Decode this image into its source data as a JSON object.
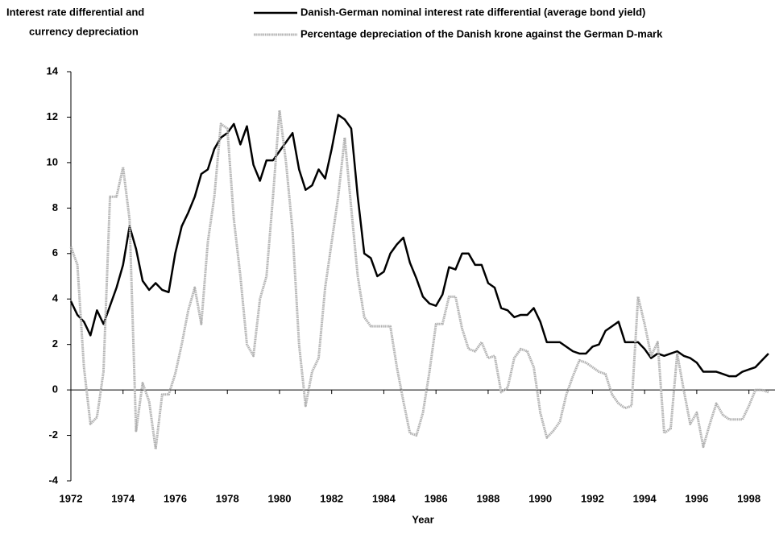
{
  "chart_data": {
    "type": "line",
    "ylabel_lines": [
      "Interest rate differential and",
      "currency depreciation"
    ],
    "xlabel": "Year",
    "x": [
      1972,
      1972.25,
      1972.5,
      1972.75,
      1973,
      1973.25,
      1973.5,
      1973.75,
      1974,
      1974.25,
      1974.5,
      1974.75,
      1975,
      1975.25,
      1975.5,
      1975.75,
      1976,
      1976.25,
      1976.5,
      1976.75,
      1977,
      1977.25,
      1977.5,
      1977.75,
      1978,
      1978.25,
      1978.5,
      1978.75,
      1979,
      1979.25,
      1979.5,
      1979.75,
      1980,
      1980.25,
      1980.5,
      1980.75,
      1981,
      1981.25,
      1981.5,
      1981.75,
      1982,
      1982.25,
      1982.5,
      1982.75,
      1983,
      1983.25,
      1983.5,
      1983.75,
      1984,
      1984.25,
      1984.5,
      1984.75,
      1985,
      1985.25,
      1985.5,
      1985.75,
      1986,
      1986.25,
      1986.5,
      1986.75,
      1987,
      1987.25,
      1987.5,
      1987.75,
      1988,
      1988.25,
      1988.5,
      1988.75,
      1989,
      1989.25,
      1989.5,
      1989.75,
      1990,
      1990.25,
      1990.5,
      1990.75,
      1991,
      1991.25,
      1991.5,
      1991.75,
      1992,
      1992.25,
      1992.5,
      1992.75,
      1993,
      1993.25,
      1993.5,
      1993.75,
      1994,
      1994.25,
      1994.5,
      1994.75,
      1995,
      1995.25,
      1995.5,
      1995.75,
      1996,
      1996.25,
      1996.5,
      1996.75,
      1997,
      1997.25,
      1997.5,
      1997.75,
      1998,
      1998.25,
      1998.5,
      1998.75
    ],
    "series": [
      {
        "name": "Danish-German nominal interest rate differential (average bond yield)",
        "color": "#000000",
        "values": [
          3.9,
          3.3,
          3.0,
          2.4,
          3.5,
          2.9,
          3.7,
          4.5,
          5.5,
          7.2,
          6.2,
          4.8,
          4.4,
          4.7,
          4.4,
          4.3,
          6.0,
          7.2,
          7.8,
          8.5,
          9.5,
          9.7,
          10.6,
          11.1,
          11.3,
          11.7,
          10.8,
          11.6,
          9.9,
          9.2,
          10.1,
          10.1,
          10.5,
          10.9,
          11.3,
          9.7,
          8.8,
          9.0,
          9.7,
          9.3,
          10.6,
          12.1,
          11.9,
          11.5,
          8.5,
          6.0,
          5.8,
          5.0,
          5.2,
          6.0,
          6.4,
          6.7,
          5.6,
          4.9,
          4.1,
          3.8,
          3.7,
          4.2,
          5.4,
          5.3,
          6.0,
          6.0,
          5.5,
          5.5,
          4.7,
          4.5,
          3.6,
          3.5,
          3.2,
          3.3,
          3.3,
          3.6,
          3.0,
          2.1,
          2.1,
          2.1,
          1.9,
          1.7,
          1.6,
          1.6,
          1.9,
          2.0,
          2.6,
          2.8,
          3.0,
          2.1,
          2.1,
          2.1,
          1.8,
          1.4,
          1.6,
          1.5,
          1.6,
          1.7,
          1.5,
          1.4,
          1.2,
          0.8,
          0.8,
          0.8,
          0.7,
          0.6,
          0.6,
          0.8,
          0.9,
          1.0,
          1.3,
          1.6
        ]
      },
      {
        "name": "Percentage depreciation of the Danish krone against the German D-mark",
        "color": "#b0b0b0",
        "values": [
          6.3,
          5.5,
          1.0,
          -1.5,
          -1.2,
          0.8,
          8.5,
          8.5,
          9.8,
          7.5,
          -1.8,
          0.3,
          -0.5,
          -2.6,
          -0.2,
          -0.2,
          0.7,
          2.0,
          3.5,
          4.5,
          2.9,
          6.5,
          8.5,
          11.7,
          11.5,
          7.5,
          5.0,
          2.0,
          1.5,
          4.0,
          5.0,
          8.5,
          12.3,
          10.0,
          7.0,
          2.0,
          -0.7,
          0.8,
          1.4,
          4.5,
          6.5,
          8.5,
          11.1,
          8.0,
          5.0,
          3.2,
          2.8,
          2.8,
          2.8,
          2.8,
          1.0,
          -0.5,
          -1.9,
          -2.0,
          -1.0,
          0.8,
          2.9,
          2.9,
          4.1,
          4.1,
          2.7,
          1.8,
          1.7,
          2.1,
          1.4,
          1.5,
          -0.1,
          0.1,
          1.4,
          1.8,
          1.7,
          1.0,
          -1.0,
          -2.1,
          -1.8,
          -1.4,
          -0.2,
          0.6,
          1.3,
          1.2,
          1.0,
          0.8,
          0.7,
          -0.2,
          -0.6,
          -0.8,
          -0.7,
          4.1,
          2.9,
          1.5,
          2.1,
          -1.9,
          -1.7,
          1.6,
          0.0,
          -1.5,
          -1.0,
          -2.5,
          -1.5,
          -0.6,
          -1.1,
          -1.3,
          -1.3,
          -1.3,
          -0.7,
          0.0,
          0.0,
          -0.1
        ]
      }
    ],
    "xlim": [
      1972,
      1999
    ],
    "xticks": [
      1972,
      1974,
      1976,
      1978,
      1980,
      1982,
      1984,
      1986,
      1988,
      1990,
      1992,
      1994,
      1996,
      1998
    ],
    "ylim": [
      -4,
      14
    ],
    "yticks": [
      -4,
      -2,
      0,
      2,
      4,
      6,
      8,
      10,
      12,
      14
    ],
    "grid": false
  }
}
